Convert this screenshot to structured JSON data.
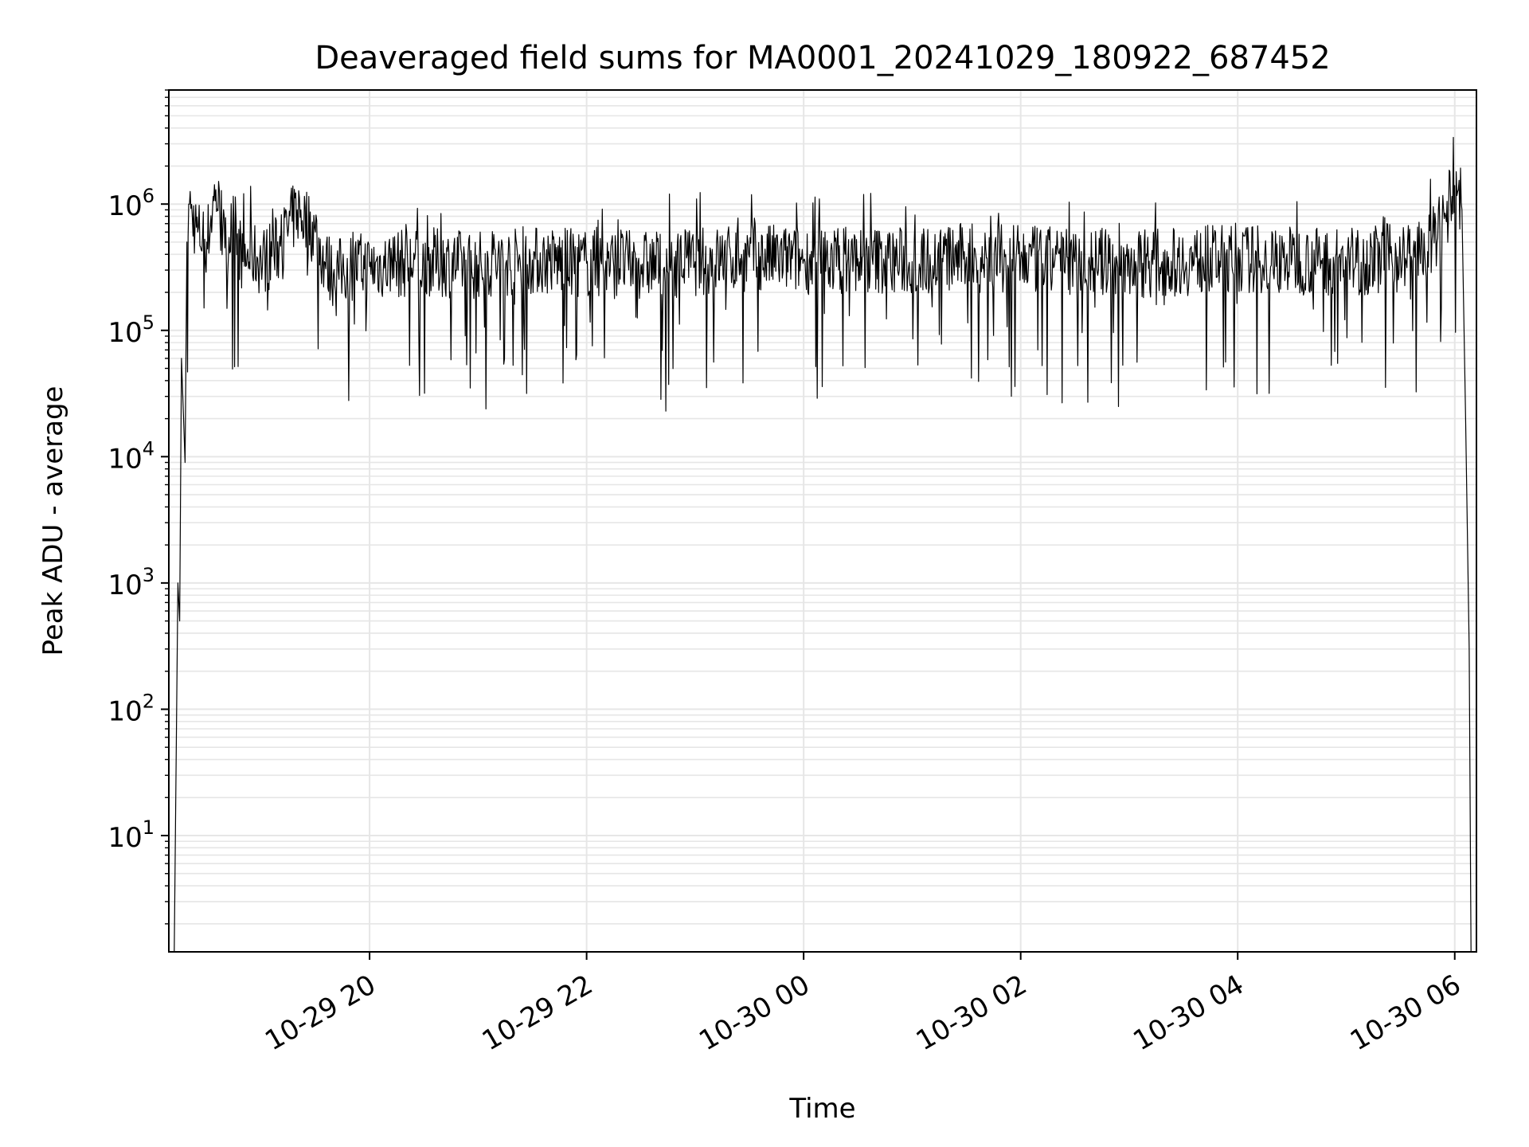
{
  "chart_data": {
    "type": "line",
    "title": "Deaveraged field sums for MA0001_20241029_180922_687452",
    "xlabel": "Time",
    "ylabel": "Peak ADU - average",
    "yscale": "log",
    "ylim": [
      1.2,
      8000000
    ],
    "xlim": [
      "2024-10-29 18:09",
      "2024-10-30 06:12"
    ],
    "grid": true,
    "line_color": "#000000",
    "grid_color": "#e6e6e6",
    "x_ticks": [
      {
        "value": "2024-10-29 20:00",
        "label": "10-29 20"
      },
      {
        "value": "2024-10-29 22:00",
        "label": "10-29 22"
      },
      {
        "value": "2024-10-30 00:00",
        "label": "10-30 00"
      },
      {
        "value": "2024-10-30 02:00",
        "label": "10-30 02"
      },
      {
        "value": "2024-10-30 04:00",
        "label": "10-30 04"
      },
      {
        "value": "2024-10-30 06:00",
        "label": "10-30 06"
      }
    ],
    "y_ticks": [
      {
        "value": 10,
        "base": "10",
        "exp": "1"
      },
      {
        "value": 100,
        "base": "10",
        "exp": "2"
      },
      {
        "value": 1000,
        "base": "10",
        "exp": "3"
      },
      {
        "value": 10000,
        "base": "10",
        "exp": "4"
      },
      {
        "value": 100000,
        "base": "10",
        "exp": "5"
      },
      {
        "value": 1000000,
        "base": "10",
        "exp": "6"
      }
    ],
    "series": [
      {
        "x": [
          "2024-10-29 18:09",
          "2024-10-29 18:12",
          "2024-10-29 18:14",
          "2024-10-29 18:15",
          "2024-10-29 18:16",
          "2024-10-29 18:18",
          "2024-10-29 18:19",
          "2024-10-29 18:20",
          "2024-10-29 18:22",
          "2024-10-29 18:25",
          "2024-10-29 18:30",
          "2024-10-29 18:35",
          "2024-10-29 18:40",
          "2024-10-29 18:45",
          "2024-10-29 18:50",
          "2024-10-29 18:55",
          "2024-10-29 19:00",
          "2024-10-29 19:10",
          "2024-10-29 19:20",
          "2024-10-29 19:30",
          "2024-10-29 19:35",
          "2024-10-29 19:40",
          "2024-10-29 19:45",
          "2024-10-29 19:50",
          "2024-10-29 20:00",
          "2024-10-29 20:30",
          "2024-10-29 21:00",
          "2024-10-29 21:30",
          "2024-10-29 22:00",
          "2024-10-29 22:30",
          "2024-10-29 23:00",
          "2024-10-29 23:30",
          "2024-10-30 00:00",
          "2024-10-30 00:30",
          "2024-10-30 01:00",
          "2024-10-30 01:30",
          "2024-10-30 02:00",
          "2024-10-30 02:30",
          "2024-10-30 03:00",
          "2024-10-30 03:30",
          "2024-10-30 04:00",
          "2024-10-30 04:30",
          "2024-10-30 05:00",
          "2024-10-30 05:30",
          "2024-10-30 05:45",
          "2024-10-30 05:55",
          "2024-10-30 06:00",
          "2024-10-30 06:02",
          "2024-10-30 06:04",
          "2024-10-30 06:06",
          "2024-10-30 06:08",
          "2024-10-30 06:09"
        ],
        "y": [
          1.2,
          1.2,
          1000,
          500,
          60000,
          9000,
          500000,
          1000000,
          800000,
          600000,
          500000,
          1300000,
          450000,
          700000,
          350000,
          400000,
          350000,
          450000,
          900000,
          600000,
          350000,
          280000,
          300000,
          320000,
          320000,
          350000,
          330000,
          360000,
          340000,
          330000,
          350000,
          380000,
          360000,
          370000,
          350000,
          380000,
          360000,
          350000,
          340000,
          350000,
          370000,
          360000,
          350000,
          380000,
          420000,
          800000,
          1400000,
          1300000,
          900000,
          20000,
          300,
          1.2
        ]
      }
    ]
  }
}
